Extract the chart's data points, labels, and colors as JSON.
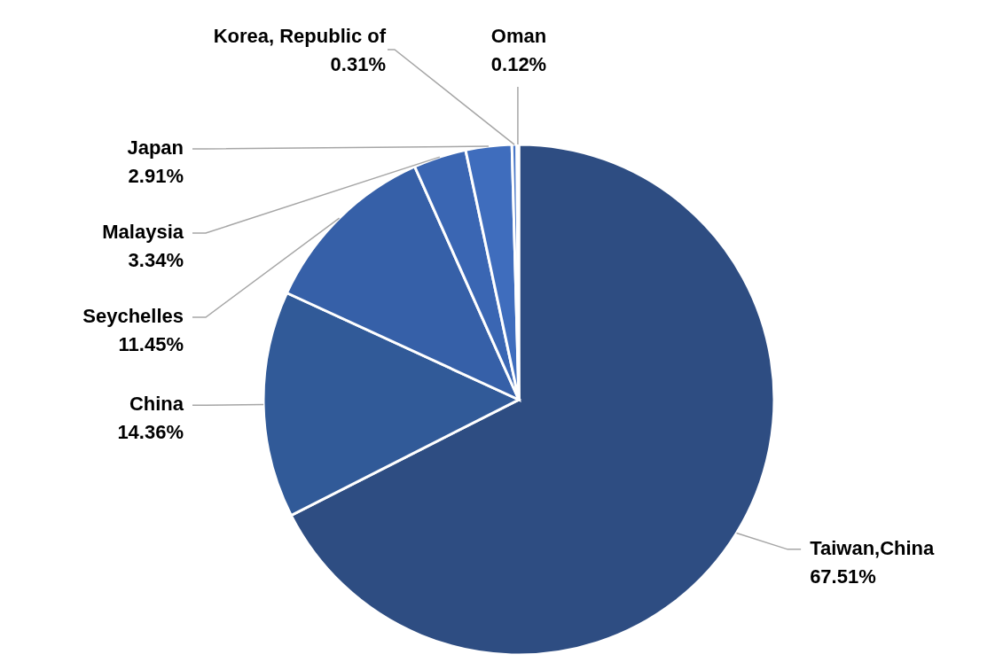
{
  "chart_data": {
    "type": "pie",
    "categories": [
      "Taiwan,China",
      "China",
      "Seychelles",
      "Malaysia",
      "Japan",
      "Korea, Republic of",
      "Oman"
    ],
    "values": [
      67.51,
      14.36,
      11.45,
      3.34,
      2.91,
      0.31,
      0.12
    ],
    "value_labels": [
      "67.51%",
      "14.36%",
      "11.45%",
      "3.34%",
      "2.91%",
      "0.31%",
      "0.12%"
    ],
    "colors": [
      "#2e4d82",
      "#315a98",
      "#3660a8",
      "#3a66b3",
      "#3f6dbd",
      "#4a78c8",
      "#5a86d0"
    ]
  }
}
